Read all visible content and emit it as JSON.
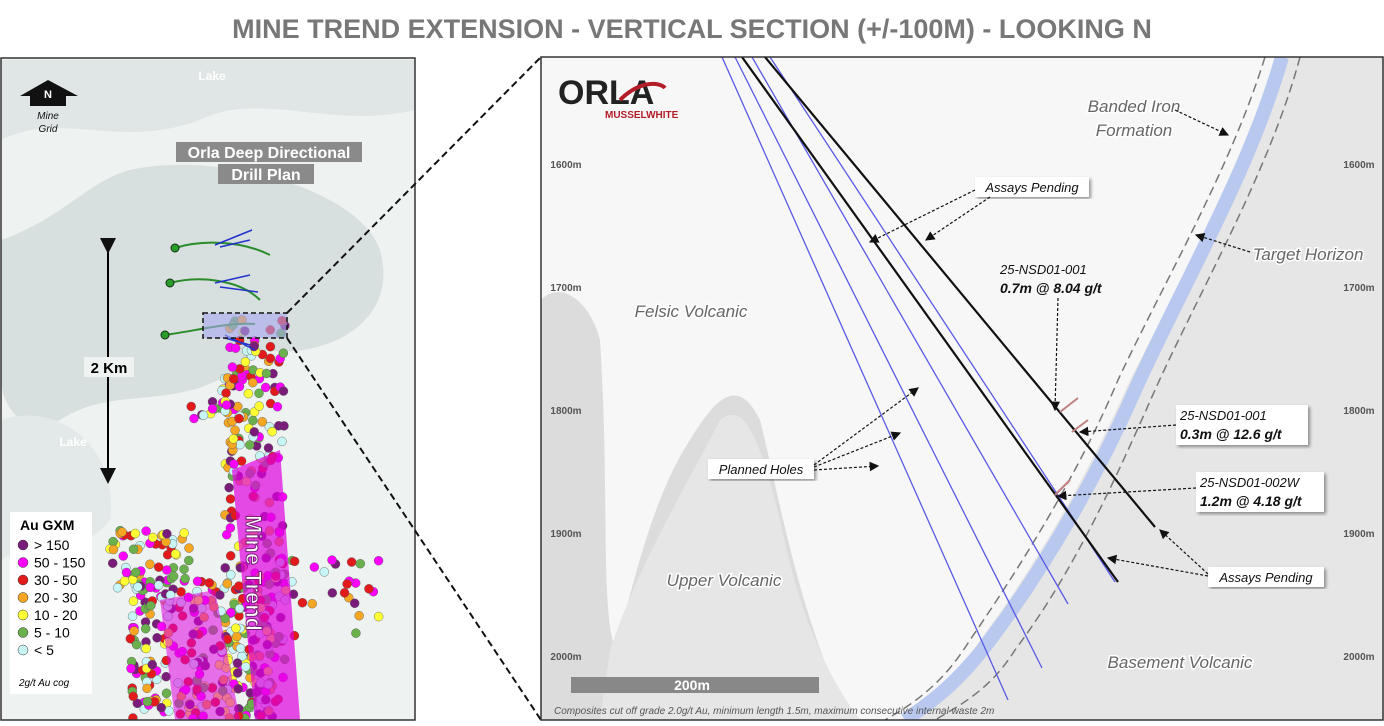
{
  "title": "MINE TREND EXTENSION - VERTICAL SECTION (+/-100M) - LOOKING N",
  "map": {
    "lake_top": "Lake",
    "north": "N",
    "grid_label": [
      "Mine",
      "Grid"
    ],
    "drill_plan": [
      "Orla Deep Directional",
      "Drill Plan"
    ],
    "scale": "2 Km",
    "lake_left": "Lake",
    "trend": "Mine Trend",
    "legend": {
      "title": "Au GXM",
      "items": [
        {
          "label": "> 150",
          "color": "#7a1c7a"
        },
        {
          "label": "50 - 150",
          "color": "#ff00ff"
        },
        {
          "label": "30 - 50",
          "color": "#e31a1c"
        },
        {
          "label": "20 - 30",
          "color": "#f5a623"
        },
        {
          "label": "10 - 20",
          "color": "#ffff33"
        },
        {
          "label": "5 - 10",
          "color": "#6ab04c"
        },
        {
          "label": "< 5",
          "color": "#c8f5f5"
        }
      ],
      "note": "2g/t Au cog"
    }
  },
  "section": {
    "logo": "ORLA",
    "logo_sub": "MUSSELWHITE",
    "depths": [
      "1600m",
      "1700m",
      "1800m",
      "1900m",
      "2000m"
    ],
    "units": {
      "bif": [
        "Banded Iron",
        "Formation"
      ],
      "target": "Target Horizon",
      "felsic": "Felsic Volcanic",
      "upper": "Upper Volcanic",
      "basement": "Basement Volcanic"
    },
    "assays_top": "Assays Pending",
    "assays_bottom": "Assays Pending",
    "planned": "Planned Holes",
    "intercepts": [
      [
        "25-NSD01-001",
        "0.7m @ 8.04 g/t"
      ],
      [
        "25-NSD01-001",
        "0.3m @ 12.6 g/t"
      ],
      [
        "25-NSD01-002W",
        "1.2m @ 4.18 g/t"
      ]
    ],
    "scale": "200m",
    "footnote": "Composites cut off grade 2.0g/t Au, minimum length 1.5m, maximum consecutive internal waste 2m"
  }
}
